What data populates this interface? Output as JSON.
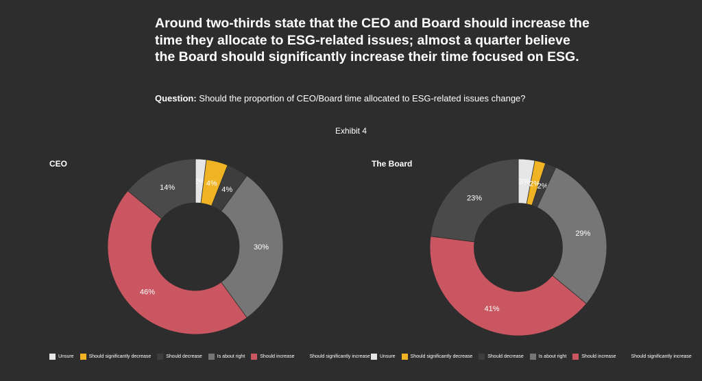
{
  "headline": "Around two-thirds state that the CEO and Board should increase the time they allocate to ESG-related issues; almost a quarter believe the Board should significantly increase their time focused on ESG.",
  "question_label": "Question:",
  "question_text": " Should the proportion of CEO/Board time allocated to ESG-related issues change?",
  "exhibit_label": "Exhibit 4",
  "colors": {
    "background": "#2d2d2d",
    "unsure": "#e6e6e6",
    "should_significantly_decrease": "#f0b323",
    "should_decrease": "#3d3d3d",
    "is_about_right": "#767676",
    "should_increase": "#c95660",
    "should_significantly_increase": "#4a4a4a"
  },
  "legend": [
    {
      "label": "Unsure",
      "color": "#e6e6e6"
    },
    {
      "label": "Should significantly decrease",
      "color": "#f0b323"
    },
    {
      "label": "Should decrease",
      "color": "#3d3d3d"
    },
    {
      "label": "Is about right",
      "color": "#767676"
    },
    {
      "label": "Should increase",
      "color": "#c95660"
    },
    {
      "label": "Should significantly increase",
      "color": "#2d2d2d"
    }
  ],
  "chart_data": [
    {
      "type": "pie",
      "title": "CEO",
      "categories": [
        "Unsure",
        "Should significantly decrease",
        "Should decrease",
        "Is about right",
        "Should increase",
        "Should significantly increase"
      ],
      "values": [
        2,
        4,
        4,
        30,
        46,
        14
      ],
      "labels": [
        "2%",
        "4%",
        "4%",
        "30%",
        "46%",
        "14%"
      ],
      "colors": [
        "#e6e6e6",
        "#f0b323",
        "#3d3d3d",
        "#767676",
        "#c95660",
        "#4a4a4a"
      ],
      "donut": true
    },
    {
      "type": "pie",
      "title": "The Board",
      "categories": [
        "Unsure",
        "Should significantly decrease",
        "Should decrease",
        "Is about right",
        "Should increase",
        "Should significantly increase"
      ],
      "values": [
        3,
        2,
        2,
        29,
        41,
        23
      ],
      "labels": [
        "3%",
        "2%",
        "2%",
        "29%",
        "41%",
        "23%"
      ],
      "colors": [
        "#e6e6e6",
        "#f0b323",
        "#3d3d3d",
        "#767676",
        "#c95660",
        "#4a4a4a"
      ],
      "donut": true
    }
  ]
}
